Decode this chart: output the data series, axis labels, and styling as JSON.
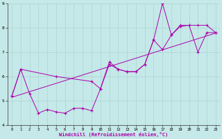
{
  "xlabel": "Windchill (Refroidissement éolien,°C)",
  "xlim": [
    -0.5,
    23.5
  ],
  "ylim": [
    4,
    9
  ],
  "yticks": [
    4,
    5,
    6,
    7,
    8,
    9
  ],
  "xticks": [
    0,
    1,
    2,
    3,
    4,
    5,
    6,
    7,
    8,
    9,
    10,
    11,
    12,
    13,
    14,
    15,
    16,
    17,
    18,
    19,
    20,
    21,
    22,
    23
  ],
  "bg_color": "#c5e8e8",
  "grid_color": "#aad4d4",
  "line_color": "#aa00aa",
  "line1_x": [
    0,
    1,
    2,
    3,
    4,
    5,
    6,
    7,
    8,
    9,
    10,
    11,
    12,
    13,
    14,
    15,
    16,
    17,
    18,
    19,
    20,
    21,
    22,
    23
  ],
  "line1_y": [
    5.2,
    6.3,
    5.3,
    4.5,
    4.65,
    4.55,
    4.5,
    4.7,
    4.7,
    4.6,
    5.5,
    6.5,
    6.3,
    6.2,
    6.2,
    6.5,
    7.5,
    9.0,
    7.7,
    8.1,
    8.1,
    7.0,
    7.8,
    7.8
  ],
  "line2_x": [
    0,
    1,
    5,
    9,
    10,
    11,
    12,
    13,
    14,
    15,
    16,
    17,
    18,
    19,
    20,
    21,
    22,
    23
  ],
  "line2_y": [
    5.2,
    6.3,
    6.0,
    5.8,
    5.5,
    6.6,
    6.3,
    6.2,
    6.2,
    6.5,
    7.5,
    7.1,
    7.7,
    8.05,
    8.1,
    8.1,
    8.1,
    7.8
  ],
  "line3_x": [
    0,
    23
  ],
  "line3_y": [
    5.15,
    7.78
  ],
  "tick_fontsize": 4.0,
  "xlabel_fontsize": 5.0,
  "marker_size": 2.5,
  "linewidth": 0.7
}
